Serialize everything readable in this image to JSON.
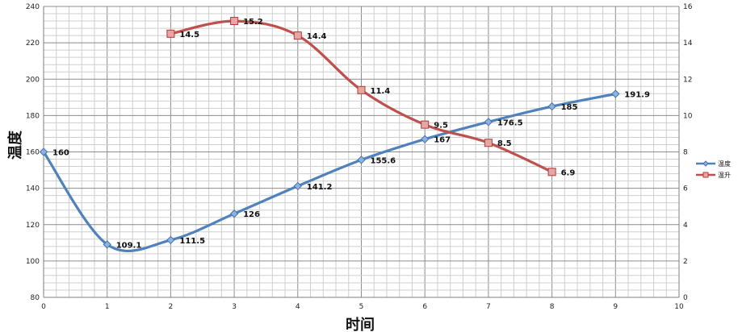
{
  "chart_data": {
    "type": "line",
    "title": "",
    "xlabel": "时间",
    "ylabel": "温度",
    "y2label": "",
    "x": [
      0,
      1,
      2,
      3,
      4,
      5,
      6,
      7,
      8,
      9
    ],
    "xlim": [
      0,
      10
    ],
    "ylim": [
      80,
      240
    ],
    "y2lim": [
      0,
      16
    ],
    "x_ticks": [
      0,
      1,
      2,
      3,
      4,
      5,
      6,
      7,
      8,
      9,
      10
    ],
    "y_ticks": [
      80,
      100,
      120,
      140,
      160,
      180,
      200,
      220,
      240
    ],
    "y2_ticks": [
      0,
      2,
      4,
      6,
      8,
      10,
      12,
      14,
      16
    ],
    "grid": true,
    "legend_position": "right",
    "series": [
      {
        "name": "温度",
        "axis": "left",
        "color": "#4F81BD",
        "marker": "diamond",
        "points": [
          {
            "x": 0,
            "y": 160,
            "label": "160"
          },
          {
            "x": 1,
            "y": 109.1,
            "label": "109.1"
          },
          {
            "x": 2,
            "y": 111.5,
            "label": "111.5"
          },
          {
            "x": 3,
            "y": 126,
            "label": "126"
          },
          {
            "x": 4,
            "y": 141.2,
            "label": "141.2"
          },
          {
            "x": 5,
            "y": 155.6,
            "label": "155.6"
          },
          {
            "x": 6,
            "y": 167,
            "label": "167"
          },
          {
            "x": 7,
            "y": 176.5,
            "label": "176.5"
          },
          {
            "x": 8,
            "y": 185,
            "label": "185"
          },
          {
            "x": 9,
            "y": 191.9,
            "label": "191.9"
          }
        ]
      },
      {
        "name": "温升",
        "axis": "right",
        "color": "#C0504D",
        "marker": "square",
        "points": [
          {
            "x": 2,
            "y": 14.5,
            "label": "14.5"
          },
          {
            "x": 3,
            "y": 15.2,
            "label": "15.2"
          },
          {
            "x": 4,
            "y": 14.4,
            "label": "14.4"
          },
          {
            "x": 5,
            "y": 11.4,
            "label": "11.4"
          },
          {
            "x": 6,
            "y": 9.5,
            "label": "9.5"
          },
          {
            "x": 7,
            "y": 8.5,
            "label": "8.5"
          },
          {
            "x": 8,
            "y": 6.9,
            "label": "6.9"
          }
        ]
      }
    ]
  }
}
